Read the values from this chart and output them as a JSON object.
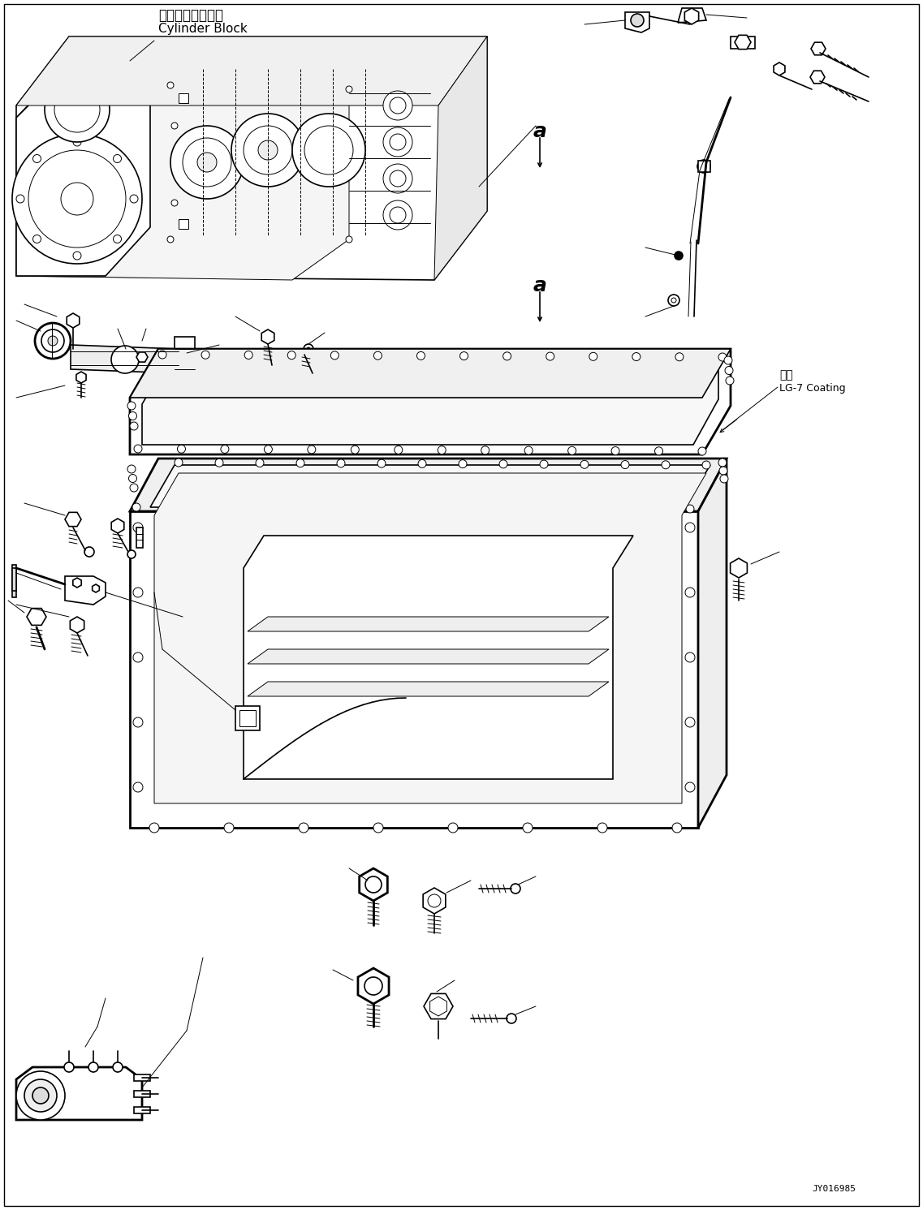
{
  "background_color": "#ffffff",
  "image_code": "JY016985",
  "label_cylinder_block_jp": "シリンダブロック",
  "label_cylinder_block_en": "Cylinder Block",
  "label_coating_jp": "塗布",
  "label_coating_en": "LG-7 Coating",
  "label_a": "a",
  "fig_width": 11.37,
  "fig_height": 14.91,
  "dpi": 100,
  "lw_thin": 0.7,
  "lw_med": 1.2,
  "lw_thick": 2.0
}
